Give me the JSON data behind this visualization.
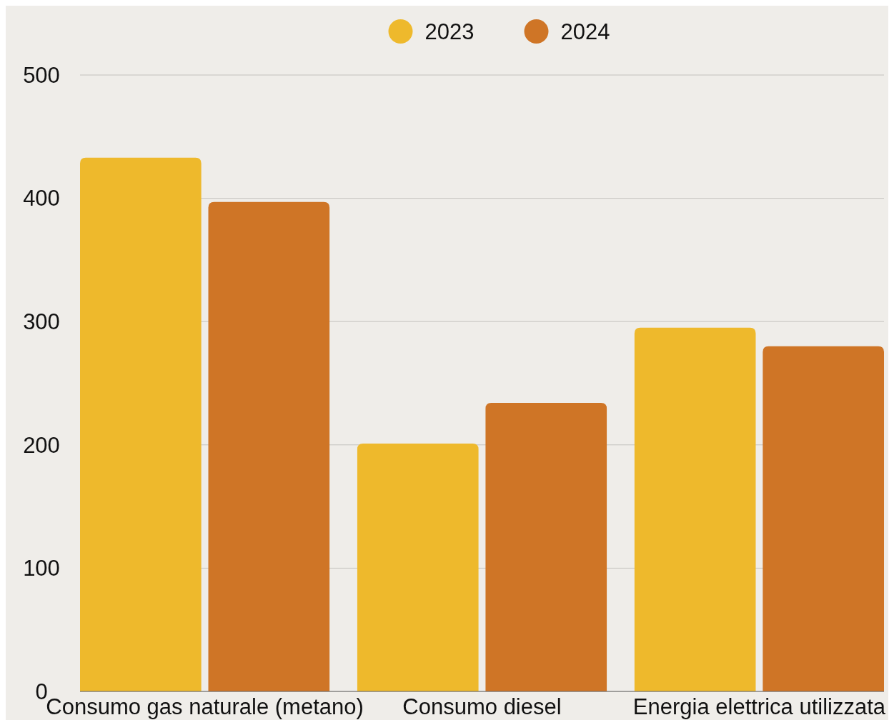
{
  "chart_data": {
    "type": "bar",
    "categories": [
      "Consumo gas naturale (metano)",
      "Consumo diesel",
      "Energia elettrica utilizzata"
    ],
    "series": [
      {
        "name": "2023",
        "color": "#eeb92c",
        "values": [
          433,
          201,
          295
        ]
      },
      {
        "name": "2024",
        "color": "#cf7526",
        "values": [
          397,
          234,
          280
        ]
      }
    ],
    "ylim": [
      0,
      500
    ],
    "yticks": [
      0,
      100,
      200,
      300,
      400,
      500
    ],
    "grid": "y",
    "legend": "top"
  }
}
